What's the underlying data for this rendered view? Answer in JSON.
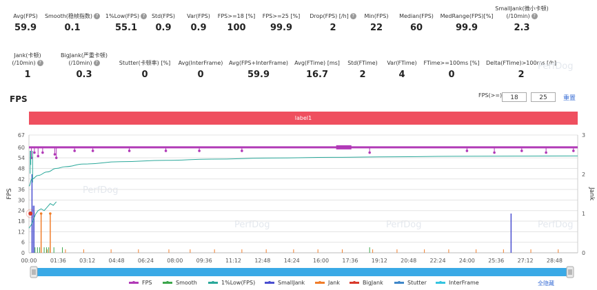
{
  "metrics_row1": [
    {
      "label": "Avg(FPS)",
      "value": "59.9",
      "help": false
    },
    {
      "label": "Smooth(稳帧指数)",
      "value": "0.1",
      "help": true
    },
    {
      "label": "1%Low(FPS)",
      "value": "55.1",
      "help": true
    },
    {
      "label": "Std(FPS)",
      "value": "0.9",
      "help": false
    },
    {
      "label": "Var(FPS)",
      "value": "0.9",
      "help": false
    },
    {
      "label": "FPS>=18 [%]",
      "value": "100",
      "help": false
    },
    {
      "label": "FPS>=25 [%]",
      "value": "99.9",
      "help": false
    },
    {
      "label": "Drop(FPS) [/h]",
      "value": "2",
      "help": true
    },
    {
      "label": "Min(FPS)",
      "value": "22",
      "help": false
    },
    {
      "label": "Median(FPS)",
      "value": "60",
      "help": false
    },
    {
      "label": "MedRange(FPS)[%]",
      "value": "99.9",
      "help": false
    },
    {
      "label": "SmallJank(微小卡顿)",
      "label2": "(/10min)",
      "value": "2.3",
      "help": true
    }
  ],
  "metrics_row2": [
    {
      "label": "Jank(卡顿)",
      "label2": "(/10min)",
      "value": "1",
      "help": true
    },
    {
      "label": "BigJank(严重卡顿)",
      "label2": "(/10min)",
      "value": "0.3",
      "help": true
    },
    {
      "label": "Stutter(卡顿率) [%]",
      "value": "0",
      "help": false
    },
    {
      "label": "Avg(InterFrame)",
      "value": "0",
      "help": false
    },
    {
      "label": "Avg(FPS+InterFrame)",
      "value": "59.9",
      "help": false
    },
    {
      "label": "Avg(FTime) [ms]",
      "value": "16.7",
      "help": false
    },
    {
      "label": "Std(FTime)",
      "value": "2",
      "help": false
    },
    {
      "label": "Var(FTime)",
      "value": "4",
      "help": false
    },
    {
      "label": "FTime>=100ms [%]",
      "value": "0",
      "help": false
    },
    {
      "label": "Delta(FTime)>100ms [/h]",
      "value": "2",
      "help": false
    }
  ],
  "section_title": "FPS",
  "filter": {
    "label": "FPS(>=)",
    "value1": "18",
    "value2": "25",
    "reset_label": "重置"
  },
  "label_bar": "label1",
  "legend_hide_all": "全隐藏",
  "colors": {
    "fps": "#b13ab7",
    "smooth": "#3ca64c",
    "low1": "#2aa89a",
    "smalljank": "#4a4fd0",
    "jank": "#f07d2a",
    "bigjank": "#d83a2c",
    "stutter": "#3f87c9",
    "interframe": "#35c4e0",
    "slider": "#3aa9e6"
  },
  "chart_data": {
    "type": "line",
    "title": "",
    "xlabel": "",
    "ylabel": "FPS",
    "y2label": "Jank",
    "ylim": [
      0,
      67
    ],
    "y2lim": [
      0,
      3
    ],
    "yticks": [
      0,
      6,
      12,
      18,
      24,
      30,
      36,
      42,
      48,
      54,
      60,
      67
    ],
    "y2ticks": [
      0,
      1,
      2,
      3
    ],
    "xlim_seconds": [
      0,
      1804
    ],
    "xticks": [
      "00:00",
      "01:36",
      "03:12",
      "04:48",
      "06:24",
      "08:00",
      "09:36",
      "11:12",
      "12:48",
      "14:24",
      "16:00",
      "17:36",
      "19:12",
      "20:48",
      "22:24",
      "24:00",
      "25:36",
      "27:12",
      "28:48"
    ],
    "grid": true,
    "legend_position": "bottom",
    "series": [
      {
        "name": "FPS",
        "axis": "left",
        "x": [
          0,
          100,
          200,
          400,
          600,
          800,
          1000,
          1200,
          1400,
          1600,
          1800
        ],
        "values": [
          60,
          60,
          60,
          60,
          60,
          60,
          60,
          60,
          60,
          60,
          60
        ],
        "dips": [
          {
            "x": 8,
            "y": 54
          },
          {
            "x": 18,
            "y": 57
          },
          {
            "x": 30,
            "y": 55
          },
          {
            "x": 45,
            "y": 57
          },
          {
            "x": 85,
            "y": 56
          },
          {
            "x": 90,
            "y": 54
          },
          {
            "x": 150,
            "y": 58
          },
          {
            "x": 210,
            "y": 58
          },
          {
            "x": 330,
            "y": 58
          },
          {
            "x": 450,
            "y": 58
          },
          {
            "x": 560,
            "y": 58
          },
          {
            "x": 700,
            "y": 58
          },
          {
            "x": 1120,
            "y": 57
          },
          {
            "x": 1440,
            "y": 58
          },
          {
            "x": 1530,
            "y": 57
          },
          {
            "x": 1620,
            "y": 58
          },
          {
            "x": 1700,
            "y": 57
          },
          {
            "x": 1790,
            "y": 58
          }
        ]
      },
      {
        "name": "1%Low(FPS)",
        "axis": "left",
        "x": [
          0,
          10,
          30,
          60,
          90,
          120,
          180,
          300,
          450,
          600,
          800,
          1000,
          1200,
          1400,
          1600,
          1804
        ],
        "values": [
          38,
          42,
          44,
          46,
          48,
          49,
          50.5,
          51.8,
          52.6,
          53.3,
          53.9,
          54.3,
          54.6,
          54.9,
          55.0,
          55.1
        ]
      },
      {
        "name": "Smooth",
        "axis": "right",
        "x": [],
        "values": []
      },
      {
        "name": "SmallJank",
        "axis": "right",
        "x": [
          10,
          1585
        ],
        "values": [
          2.0,
          1.0
        ]
      },
      {
        "name": "Jank",
        "axis": "right",
        "x": [
          40,
          70
        ],
        "values": [
          1.0,
          1.0
        ]
      },
      {
        "name": "BigJank",
        "axis": "right",
        "x": [
          5
        ],
        "values": [
          1.0
        ]
      },
      {
        "name": "Stutter",
        "axis": "right",
        "x": [],
        "values": []
      },
      {
        "name": "InterFrame",
        "axis": "right",
        "x": [],
        "values": []
      }
    ]
  }
}
